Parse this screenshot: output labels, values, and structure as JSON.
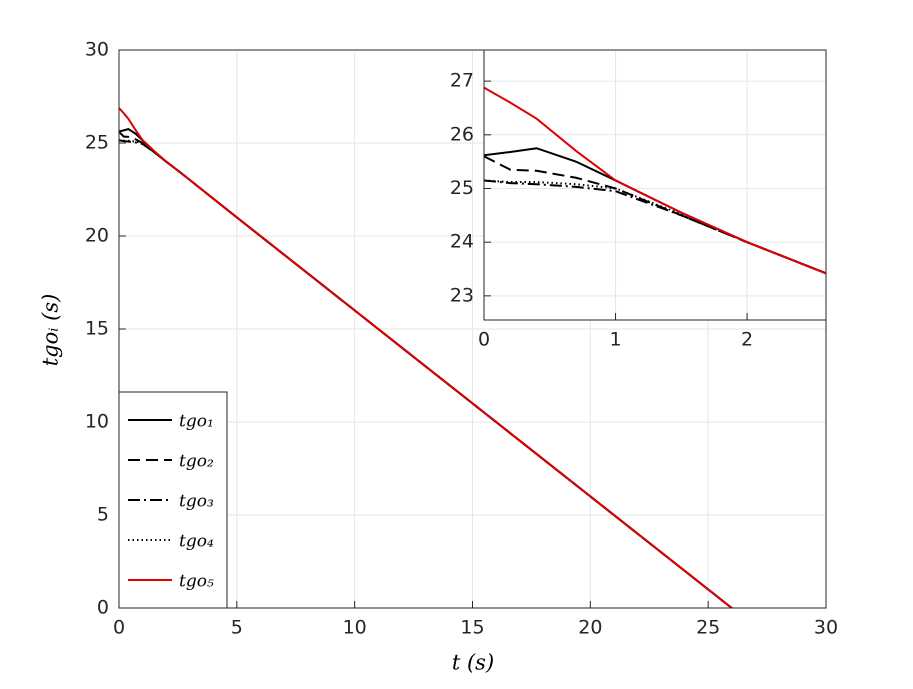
{
  "chart_data": [
    {
      "type": "line",
      "xlabel": "t (s)",
      "ylabel": "tgoᵢ (s)",
      "x": [
        0,
        0.2,
        0.4,
        0.7,
        1,
        1.5,
        2,
        2.6,
        5,
        10,
        15,
        20,
        26
      ],
      "xlim": [
        0,
        30
      ],
      "ylim": [
        0,
        30
      ],
      "xticks": [
        0,
        5,
        10,
        15,
        20,
        25,
        30
      ],
      "yticks": [
        0,
        5,
        10,
        15,
        20,
        25,
        30
      ],
      "grid": true,
      "legend": "lower left",
      "series": [
        {
          "name": "tgo₁",
          "color": "#000000",
          "style": "solid",
          "values": [
            25.62,
            25.68,
            25.75,
            25.5,
            25.15,
            24.55,
            24.0,
            23.42,
            21,
            16,
            11,
            6,
            0
          ]
        },
        {
          "name": "tgo₂",
          "color": "#000000",
          "style": "dashed",
          "values": [
            25.6,
            25.35,
            25.33,
            25.2,
            25.0,
            24.5,
            24.0,
            23.42,
            21,
            16,
            11,
            6,
            0
          ]
        },
        {
          "name": "tgo₃",
          "color": "#000000",
          "style": "dashdot",
          "values": [
            25.15,
            25.1,
            25.08,
            25.03,
            24.95,
            24.5,
            24.0,
            23.42,
            21,
            16,
            11,
            6,
            0
          ]
        },
        {
          "name": "tgo₄",
          "color": "#000000",
          "style": "dotted",
          "values": [
            25.15,
            25.12,
            25.12,
            25.08,
            25.0,
            24.52,
            24.0,
            23.42,
            21,
            16,
            11,
            6,
            0
          ]
        },
        {
          "name": "tgo₅",
          "color": "#e00000",
          "style": "solid",
          "values": [
            26.88,
            26.6,
            26.3,
            25.7,
            25.15,
            24.55,
            24.0,
            23.42,
            21,
            16,
            11,
            6,
            0
          ]
        }
      ]
    },
    {
      "type": "line",
      "x": [
        0,
        0.2,
        0.4,
        0.7,
        1,
        1.5,
        2,
        2.6
      ],
      "xlim": [
        0,
        2.6
      ],
      "ylim": [
        22.55,
        27.58
      ],
      "xticks": [
        0,
        1,
        2
      ],
      "yticks": [
        23,
        24,
        25,
        26,
        27
      ],
      "grid": true,
      "series": [
        {
          "color": "#000000",
          "style": "solid",
          "values": [
            25.62,
            25.68,
            25.75,
            25.5,
            25.15,
            24.55,
            24.0,
            23.42
          ]
        },
        {
          "color": "#000000",
          "style": "dashed",
          "values": [
            25.6,
            25.35,
            25.33,
            25.2,
            25.0,
            24.5,
            24.0,
            23.42
          ]
        },
        {
          "color": "#000000",
          "style": "dashdot",
          "values": [
            25.15,
            25.1,
            25.08,
            25.03,
            24.95,
            24.5,
            24.0,
            23.42
          ]
        },
        {
          "color": "#000000",
          "style": "dotted",
          "values": [
            25.15,
            25.12,
            25.12,
            25.08,
            25.0,
            24.52,
            24.0,
            23.42
          ]
        },
        {
          "color": "#e00000",
          "style": "solid",
          "values": [
            26.88,
            26.6,
            26.3,
            25.7,
            25.15,
            24.55,
            24.0,
            23.42
          ]
        }
      ]
    }
  ]
}
